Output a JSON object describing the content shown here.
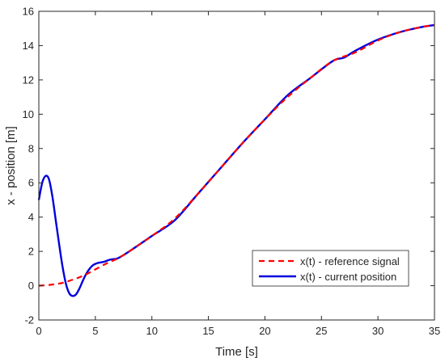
{
  "chart_data": {
    "type": "line",
    "title": "",
    "xlabel": "Time [s]",
    "ylabel": "x - position [m]",
    "xlim": [
      0,
      35
    ],
    "ylim": [
      -2,
      16
    ],
    "xticks": [
      0,
      5,
      10,
      15,
      20,
      25,
      30,
      35
    ],
    "yticks": [
      -2,
      0,
      2,
      4,
      6,
      8,
      10,
      12,
      14,
      16
    ],
    "grid": false,
    "legend_position": "lower-right",
    "series": [
      {
        "name": "x(t) - reference signal",
        "color": "#ff0000",
        "style": "dashed",
        "x": [
          0,
          1,
          2,
          3,
          4,
          5,
          6,
          7,
          8,
          10,
          12,
          14,
          16,
          18,
          20,
          22,
          24,
          26,
          28,
          30,
          32,
          34,
          35
        ],
        "y": [
          0,
          0.05,
          0.15,
          0.35,
          0.6,
          0.95,
          1.3,
          1.6,
          2.0,
          2.9,
          3.9,
          5.3,
          6.8,
          8.3,
          9.7,
          11.0,
          12.1,
          13.1,
          13.6,
          14.3,
          14.8,
          15.1,
          15.2
        ]
      },
      {
        "name": "x(t) - current position",
        "color": "#0000dd",
        "style": "solid",
        "x": [
          0,
          0.3,
          0.6,
          0.9,
          1.2,
          1.5,
          1.8,
          2.1,
          2.4,
          2.7,
          3.0,
          3.3,
          3.6,
          3.9,
          4.2,
          4.5,
          4.8,
          5.1,
          5.4,
          5.8,
          6.2,
          6.6,
          7.0,
          8,
          10,
          12,
          14,
          16,
          18,
          20,
          22,
          24,
          26,
          27,
          28,
          30,
          32,
          34,
          35
        ],
        "y": [
          5.0,
          6.0,
          6.4,
          6.2,
          5.2,
          3.8,
          2.4,
          1.1,
          0.1,
          -0.45,
          -0.6,
          -0.5,
          -0.15,
          0.3,
          0.7,
          1.0,
          1.2,
          1.3,
          1.35,
          1.4,
          1.5,
          1.55,
          1.6,
          2.0,
          2.9,
          3.8,
          5.3,
          6.8,
          8.3,
          9.7,
          11.1,
          12.1,
          13.1,
          13.3,
          13.7,
          14.35,
          14.8,
          15.1,
          15.2
        ]
      }
    ]
  }
}
